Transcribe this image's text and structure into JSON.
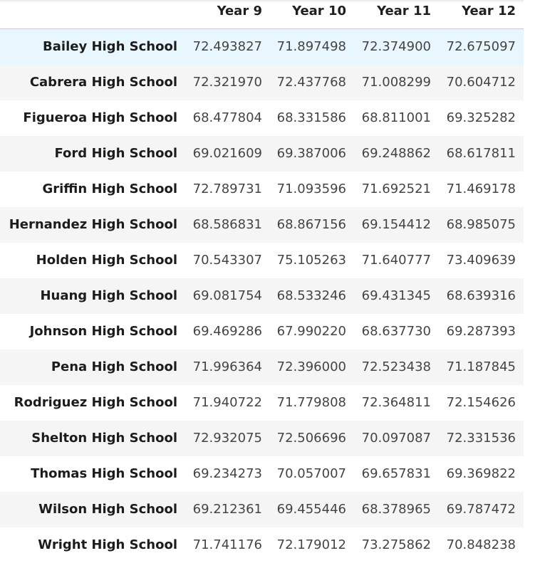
{
  "table": {
    "columns": [
      "Year 9",
      "Year 10",
      "Year 11",
      "Year 12"
    ],
    "rows": [
      {
        "index": "Bailey High School",
        "values": [
          "72.493827",
          "71.897498",
          "72.374900",
          "72.675097"
        ]
      },
      {
        "index": "Cabrera High School",
        "values": [
          "72.321970",
          "72.437768",
          "71.008299",
          "70.604712"
        ]
      },
      {
        "index": "Figueroa High School",
        "values": [
          "68.477804",
          "68.331586",
          "68.811001",
          "69.325282"
        ]
      },
      {
        "index": "Ford High School",
        "values": [
          "69.021609",
          "69.387006",
          "69.248862",
          "68.617811"
        ]
      },
      {
        "index": "Griffin High School",
        "values": [
          "72.789731",
          "71.093596",
          "71.692521",
          "71.469178"
        ]
      },
      {
        "index": "Hernandez High School",
        "values": [
          "68.586831",
          "68.867156",
          "69.154412",
          "68.985075"
        ]
      },
      {
        "index": "Holden High School",
        "values": [
          "70.543307",
          "75.105263",
          "71.640777",
          "73.409639"
        ]
      },
      {
        "index": "Huang High School",
        "values": [
          "69.081754",
          "68.533246",
          "69.431345",
          "68.639316"
        ]
      },
      {
        "index": "Johnson High School",
        "values": [
          "69.469286",
          "67.990220",
          "68.637730",
          "69.287393"
        ]
      },
      {
        "index": "Pena High School",
        "values": [
          "71.996364",
          "72.396000",
          "72.523438",
          "71.187845"
        ]
      },
      {
        "index": "Rodriguez High School",
        "values": [
          "71.940722",
          "71.779808",
          "72.364811",
          "72.154626"
        ]
      },
      {
        "index": "Shelton High School",
        "values": [
          "72.932075",
          "72.506696",
          "70.097087",
          "72.331536"
        ]
      },
      {
        "index": "Thomas High School",
        "values": [
          "69.234273",
          "70.057007",
          "69.657831",
          "69.369822"
        ]
      },
      {
        "index": "Wilson High School",
        "values": [
          "69.212361",
          "69.455446",
          "68.378965",
          "69.787472"
        ]
      },
      {
        "index": "Wright High School",
        "values": [
          "71.741176",
          "72.179012",
          "73.275862",
          "70.848238"
        ]
      }
    ]
  },
  "colors": {
    "hover_row": "#e8f6fd",
    "alt_row": "#f5f5f5",
    "header_border": "#c9c9c9"
  }
}
